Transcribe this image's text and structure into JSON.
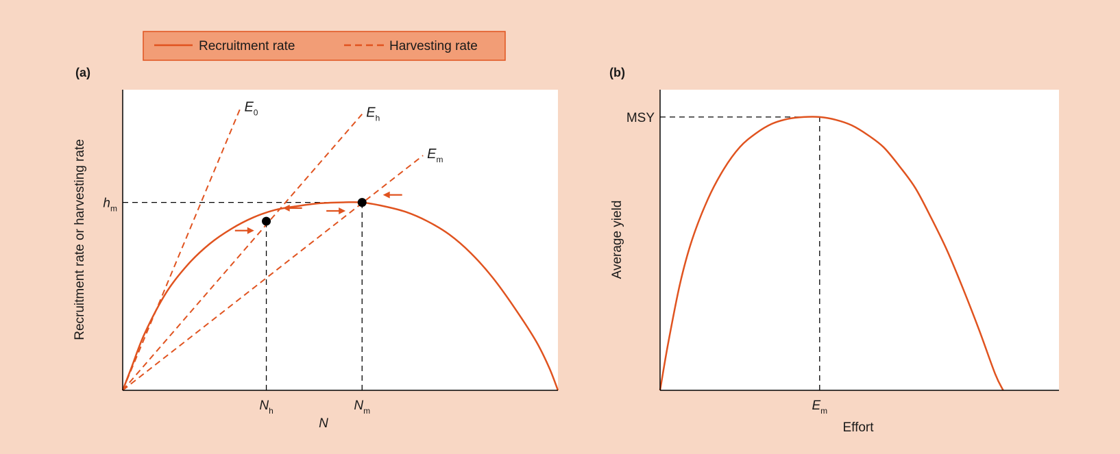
{
  "colors": {
    "background": "#f8d7c4",
    "plot_bg": "#ffffff",
    "curve": "#e0531f",
    "legend_bg": "#f29d76",
    "guide": "#000000"
  },
  "legend": {
    "items": [
      {
        "label": "Recruitment rate",
        "style": "solid"
      },
      {
        "label": "Harvesting rate",
        "style": "dashed"
      }
    ],
    "position": "top-left"
  },
  "chart_data": [
    {
      "panel_label": "(a)",
      "type": "line",
      "xlabel": "N",
      "ylabel": "Recruitment rate or harvesting rate",
      "grid": false,
      "xlim": [
        0,
        1
      ],
      "ylim": [
        0,
        1.6
      ],
      "y_tick_labels": [
        {
          "main": "h",
          "sub": "m",
          "value": 1.0
        }
      ],
      "x_tick_labels": [
        {
          "main": "N",
          "sub": "h",
          "value": 0.33
        },
        {
          "main": "N",
          "sub": "m",
          "value": 0.55
        }
      ],
      "series": [
        {
          "role": "recruitment",
          "style": "solid",
          "x": [
            0,
            0.02,
            0.05,
            0.1,
            0.15,
            0.2,
            0.25,
            0.3,
            0.35,
            0.4,
            0.45,
            0.5,
            0.55,
            0.6,
            0.65,
            0.7,
            0.75,
            0.8,
            0.85,
            0.9,
            0.95,
            0.98,
            1.0
          ],
          "y": [
            0,
            0.12,
            0.3,
            0.52,
            0.67,
            0.78,
            0.86,
            0.92,
            0.96,
            0.98,
            0.995,
            1.0,
            1.0,
            0.98,
            0.95,
            0.9,
            0.83,
            0.73,
            0.6,
            0.44,
            0.26,
            0.12,
            0
          ]
        },
        {
          "name": "E",
          "sub": "0",
          "role": "harvest",
          "style": "dashed",
          "x": [
            0,
            0.27
          ],
          "y": [
            0,
            1.5
          ]
        },
        {
          "name": "E",
          "sub": "h",
          "role": "harvest",
          "style": "dashed",
          "x": [
            0,
            0.55
          ],
          "y": [
            0,
            1.47
          ]
        },
        {
          "name": "E",
          "sub": "m",
          "role": "harvest",
          "style": "dashed",
          "x": [
            0,
            0.69
          ],
          "y": [
            0,
            1.25
          ]
        }
      ],
      "points": [
        {
          "x": 0.33,
          "y": 0.9
        },
        {
          "x": 0.55,
          "y": 1.0
        }
      ],
      "guides": [
        {
          "from": [
            0,
            1.0
          ],
          "to": [
            0.55,
            1.0
          ]
        },
        {
          "from": [
            0.33,
            0
          ],
          "to": [
            0.33,
            0.9
          ]
        },
        {
          "from": [
            0.55,
            0
          ],
          "to": [
            0.55,
            1.0
          ]
        }
      ],
      "arrows": [
        {
          "x": 0.28,
          "y": 0.85,
          "dir": "right"
        },
        {
          "x": 0.39,
          "y": 0.97,
          "dir": "left"
        },
        {
          "x": 0.49,
          "y": 0.955,
          "dir": "right"
        },
        {
          "x": 0.62,
          "y": 1.04,
          "dir": "left"
        }
      ]
    },
    {
      "panel_label": "(b)",
      "type": "line",
      "xlabel": "Effort",
      "ylabel": "Average yield",
      "grid": false,
      "xlim": [
        0,
        1
      ],
      "ylim": [
        0,
        1.1
      ],
      "y_tick_labels": [
        {
          "main": "MSY",
          "sub": "",
          "value": 1.0
        }
      ],
      "x_tick_labels": [
        {
          "main": "E",
          "sub": "m",
          "value": 0.4
        }
      ],
      "series": [
        {
          "role": "yield",
          "style": "solid",
          "x": [
            0,
            0.02,
            0.05,
            0.08,
            0.12,
            0.16,
            0.2,
            0.24,
            0.28,
            0.32,
            0.36,
            0.4,
            0.44,
            0.48,
            0.52,
            0.56,
            0.6,
            0.64,
            0.68,
            0.72,
            0.76,
            0.8,
            0.84,
            0.86
          ],
          "y": [
            0,
            0.17,
            0.39,
            0.55,
            0.7,
            0.81,
            0.89,
            0.94,
            0.975,
            0.993,
            1.0,
            1.0,
            0.99,
            0.97,
            0.935,
            0.89,
            0.82,
            0.74,
            0.63,
            0.51,
            0.37,
            0.22,
            0.06,
            0
          ]
        }
      ],
      "guides": [
        {
          "from": [
            0,
            1.0
          ],
          "to": [
            0.4,
            1.0
          ]
        },
        {
          "from": [
            0.4,
            0
          ],
          "to": [
            0.4,
            1.0
          ]
        }
      ]
    }
  ]
}
